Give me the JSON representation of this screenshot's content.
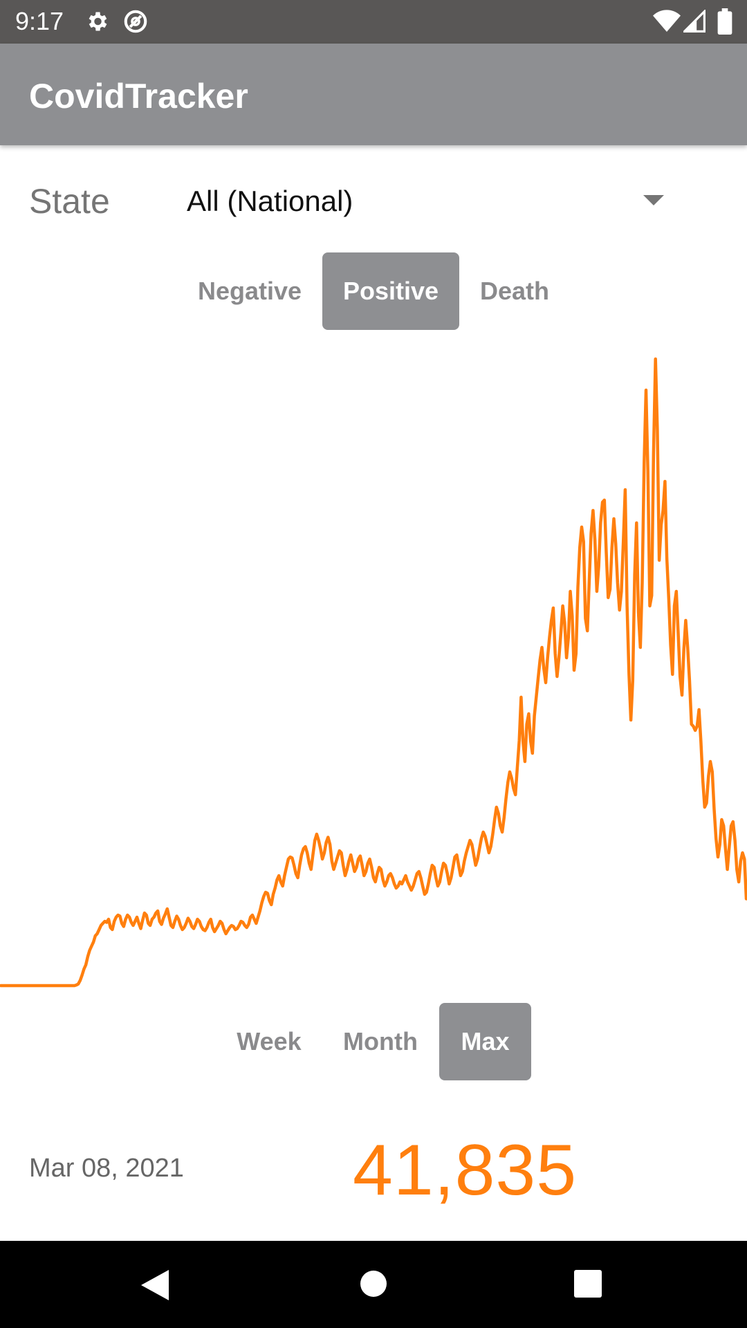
{
  "status_bar": {
    "time": "9:17",
    "left_icons": [
      "gear-icon",
      "a11y-icon"
    ],
    "right_icons": [
      "wifi-icon",
      "signal-icon",
      "battery-icon"
    ]
  },
  "app_bar": {
    "title": "CovidTracker"
  },
  "filter": {
    "state_label": "State",
    "state_value": "All (National)"
  },
  "metric_tabs": [
    {
      "label": "Negative",
      "selected": false
    },
    {
      "label": "Positive",
      "selected": true
    },
    {
      "label": "Death",
      "selected": false
    }
  ],
  "range_tabs": [
    {
      "label": "Week",
      "selected": false
    },
    {
      "label": "Month",
      "selected": false
    },
    {
      "label": "Max",
      "selected": true
    }
  ],
  "readout": {
    "date": "Mar 08, 2021",
    "value": "41,835"
  },
  "colors": {
    "accent": "#ff7f0e",
    "toolbar": "#8e8f92",
    "status_bar": "#595756",
    "nav_bar": "#000000"
  },
  "chart_data": {
    "type": "line",
    "series": [
      {
        "values": [
          0,
          0,
          0,
          0,
          0,
          0,
          0,
          0,
          0,
          0,
          0,
          0,
          0,
          0,
          0,
          0,
          0,
          0,
          0,
          0,
          0,
          0,
          0,
          0,
          0,
          0,
          0,
          0,
          0,
          0,
          0,
          0,
          0,
          0,
          0,
          0,
          0,
          0,
          0,
          0,
          300,
          800,
          2500,
          5000,
          8000,
          10000,
          14000,
          17000,
          19000,
          21000,
          24000,
          25000,
          27000,
          29000,
          30000,
          31000,
          30500,
          32000,
          28000,
          27000,
          31000,
          33000,
          34000,
          33500,
          30000,
          28500,
          32000,
          34000,
          33000,
          30500,
          29000,
          31000,
          33000,
          30000,
          27500,
          31500,
          35000,
          34000,
          30000,
          29000,
          32000,
          33000,
          35000,
          36000,
          31000,
          29500,
          32500,
          34500,
          37000,
          33000,
          29000,
          28000,
          31000,
          33500,
          32000,
          29000,
          27000,
          28000,
          30000,
          32500,
          31000,
          28500,
          27500,
          29500,
          32000,
          31000,
          28500,
          27000,
          26500,
          28000,
          30500,
          32000,
          28000,
          26000,
          27500,
          29000,
          31000,
          30000,
          27000,
          25000,
          26500,
          28000,
          29000,
          28500,
          27000,
          27500,
          29000,
          31000,
          30500,
          29000,
          28000,
          29500,
          33000,
          34000,
          32000,
          30000,
          33000,
          36000,
          40000,
          43000,
          45000,
          44500,
          41000,
          39000,
          44000,
          47000,
          51000,
          53000,
          50000,
          48000,
          53000,
          57000,
          61000,
          62000,
          61500,
          58000,
          54000,
          52000,
          58000,
          63000,
          66000,
          67000,
          64000,
          59000,
          56000,
          63000,
          70000,
          73000,
          70000,
          66000,
          61000,
          64000,
          69000,
          71500,
          68000,
          60000,
          56000,
          59000,
          62000,
          65000,
          64000,
          58000,
          53000,
          56000,
          60000,
          63000,
          59000,
          55000,
          57000,
          61000,
          62500,
          58000,
          53000,
          55000,
          59000,
          61000,
          57000,
          52000,
          50000,
          54000,
          57000,
          56000,
          51000,
          48000,
          50000,
          53000,
          54000,
          52000,
          49000,
          47000,
          48000,
          50000,
          49000,
          51000,
          53000,
          50000,
          48000,
          46000,
          48000,
          51000,
          54000,
          55000,
          52000,
          48000,
          44000,
          45000,
          49000,
          54000,
          58000,
          57000,
          52000,
          48000,
          50000,
          55000,
          59000,
          58000,
          54000,
          49000,
          52000,
          57000,
          62000,
          63000,
          58000,
          53000,
          55000,
          60000,
          64000,
          67000,
          70000,
          68000,
          63000,
          58000,
          61000,
          66000,
          71000,
          74000,
          72000,
          68000,
          64000,
          67000,
          73000,
          80000,
          86000,
          83000,
          77000,
          74000,
          81000,
          90000,
          98000,
          103000,
          100000,
          95000,
          92000,
          105000,
          118000,
          139000,
          118000,
          108000,
          126000,
          131000,
          118000,
          112000,
          130000,
          139000,
          148000,
          157000,
          163000,
          153000,
          146000,
          158000,
          168000,
          176000,
          182000,
          160000,
          149000,
          158000,
          170000,
          183000,
          175000,
          158000,
          168000,
          190000,
          178000,
          152000,
          160000,
          192000,
          211000,
          221000,
          214000,
          177000,
          171000,
          195000,
          218000,
          229000,
          215000,
          190000,
          202000,
          223000,
          233000,
          234000,
          209000,
          187000,
          191000,
          211000,
          225000,
          213000,
          194000,
          181000,
          190000,
          214000,
          239000,
          183000,
          150000,
          128000,
          147000,
          198000,
          223000,
          180000,
          163000,
          194000,
          252000,
          287000,
          248000,
          183000,
          188000,
          257000,
          302000,
          268000,
          205000,
          222000,
          229000,
          243000,
          206000,
          187000,
          164000,
          150000,
          183000,
          190000,
          170000,
          149000,
          140000,
          162000,
          176000,
          163000,
          147000,
          126000,
          125000,
          123000,
          125000,
          133000,
          118000,
          99000,
          86000,
          88000,
          101000,
          108000,
          103000,
          85000,
          71000,
          62000,
          68000,
          80000,
          77000,
          66000,
          56000,
          67000,
          77000,
          79000,
          70000,
          56000,
          50000,
          60000,
          64000,
          61000,
          41835
        ]
      }
    ],
    "ylim": [
      0,
      300000
    ],
    "grid": false,
    "legend": "none"
  }
}
